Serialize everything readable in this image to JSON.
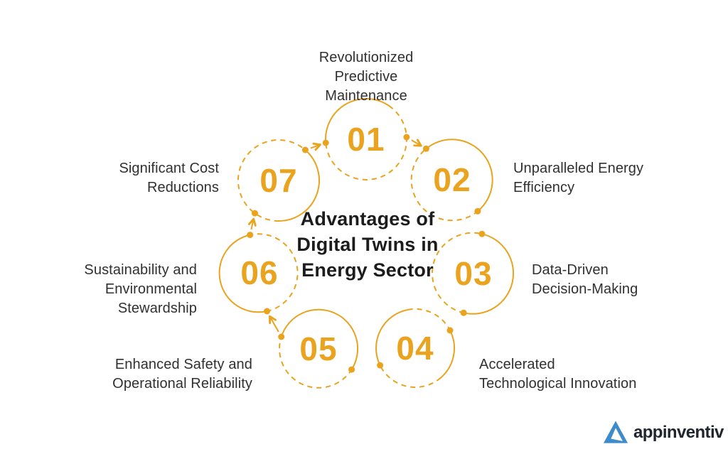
{
  "title": "Advantages of\nDigital Twins in\nEnergy Sector",
  "accent_color": "#E9A31E",
  "text_color": "#303030",
  "items": [
    {
      "number": "01",
      "label": "Revolutionized\nPredictive\nMaintenance"
    },
    {
      "number": "02",
      "label": "Unparalleled Energy\nEfficiency"
    },
    {
      "number": "03",
      "label": "Data-Driven\nDecision-Making"
    },
    {
      "number": "04",
      "label": "Accelerated\nTechnological Innovation"
    },
    {
      "number": "05",
      "label": "Enhanced Safety and\nOperational Reliability"
    },
    {
      "number": "06",
      "label": "Sustainability and\nEnvironmental\nStewardship"
    },
    {
      "number": "07",
      "label": "Significant Cost\nReductions"
    }
  ],
  "logo": {
    "text": "appinventiv",
    "triangle_color": "#3E8BCC",
    "text_color": "#20262e"
  }
}
